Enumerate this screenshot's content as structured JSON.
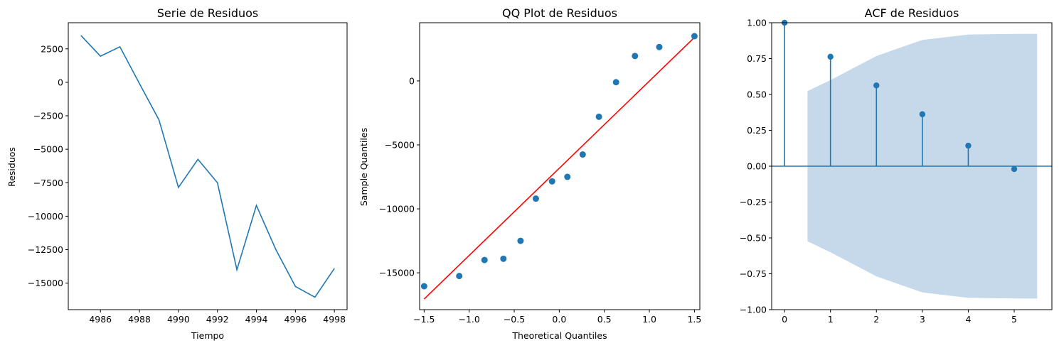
{
  "chart_data": [
    {
      "type": "line",
      "title": "Serie de Residuos",
      "xlabel": "Tiempo",
      "ylabel": "Residuos",
      "xlim": [
        4984.35,
        4998.65
      ],
      "ylim": [
        -16980,
        4450
      ],
      "xticks": [
        4986,
        4988,
        4990,
        4992,
        4994,
        4996,
        4998
      ],
      "yticks": [
        2500,
        0,
        -2500,
        -5000,
        -7500,
        -10000,
        -12500,
        -15000
      ],
      "ytick_labels": [
        "2500",
        "0",
        "−2500",
        "−5000",
        "−7500",
        "−10000",
        "−12500",
        "−15000"
      ],
      "xtick_labels": [
        "4986",
        "4988",
        "4990",
        "4992",
        "4994",
        "4996",
        "4998"
      ],
      "color": "#1f77b4",
      "x": [
        4985,
        4986,
        4987,
        4988,
        4989,
        4990,
        4991,
        4992,
        4993,
        4994,
        4995,
        4996,
        4997,
        4998
      ],
      "y": [
        3500,
        1950,
        2650,
        -100,
        -2800,
        -7850,
        -5750,
        -7500,
        -14000,
        -9200,
        -12500,
        -15250,
        -16050,
        -13900
      ]
    },
    {
      "type": "scatter",
      "title": "QQ Plot de Residuos",
      "xlabel": "Theoretical Quantiles",
      "ylabel": "Sample Quantiles",
      "xlim": [
        -1.55,
        1.56
      ],
      "ylim": [
        -17880,
        4550
      ],
      "xticks": [
        -1.5,
        -1.0,
        -0.5,
        0.0,
        0.5,
        1.0,
        1.5
      ],
      "xtick_labels": [
        "−1.5",
        "−1.0",
        "−0.5",
        "0.0",
        "0.5",
        "1.0",
        "1.5"
      ],
      "yticks": [
        0,
        -5000,
        -10000,
        -15000
      ],
      "ytick_labels": [
        "0",
        "−5000",
        "−10000",
        "−15000"
      ],
      "color": "#1f77b4",
      "line_color": "#ff0000",
      "x": [
        -1.5,
        -1.11,
        -0.83,
        -0.62,
        -0.43,
        -0.26,
        -0.08,
        0.09,
        0.26,
        0.44,
        0.63,
        0.84,
        1.11,
        1.5
      ],
      "y": [
        -16050,
        -15250,
        -14000,
        -13900,
        -12500,
        -9200,
        -7850,
        -7500,
        -5750,
        -2800,
        -100,
        1950,
        2650,
        3500
      ],
      "fit_line": {
        "x": [
          -1.5,
          1.5
        ],
        "y": [
          -17050,
          3400
        ]
      }
    },
    {
      "type": "bar",
      "subtype": "stem",
      "title": "ACF de Residuos",
      "xlim": [
        -0.28,
        5.82
      ],
      "ylim": [
        -1.0,
        1.0
      ],
      "xticks": [
        0,
        1,
        2,
        3,
        4,
        5
      ],
      "xtick_labels": [
        "0",
        "1",
        "2",
        "3",
        "4",
        "5"
      ],
      "yticks": [
        1.0,
        0.75,
        0.5,
        0.25,
        0.0,
        -0.25,
        -0.5,
        -0.75,
        -1.0
      ],
      "ytick_labels": [
        "1.00",
        "0.75",
        "0.50",
        "0.25",
        "0.00",
        "−0.25",
        "−0.50",
        "−0.75",
        "−1.00"
      ],
      "color": "#1f77b4",
      "band_color": "#c5d9ea",
      "lags": [
        0,
        1,
        2,
        3,
        4,
        5
      ],
      "values": [
        1.0,
        0.763,
        0.563,
        0.362,
        0.143,
        -0.02
      ],
      "confidence_band": {
        "x": [
          0.5,
          1,
          2,
          3,
          4,
          5,
          5.5
        ],
        "upper": [
          0.524,
          0.6,
          0.768,
          0.88,
          0.918,
          0.922,
          0.923
        ]
      }
    }
  ]
}
